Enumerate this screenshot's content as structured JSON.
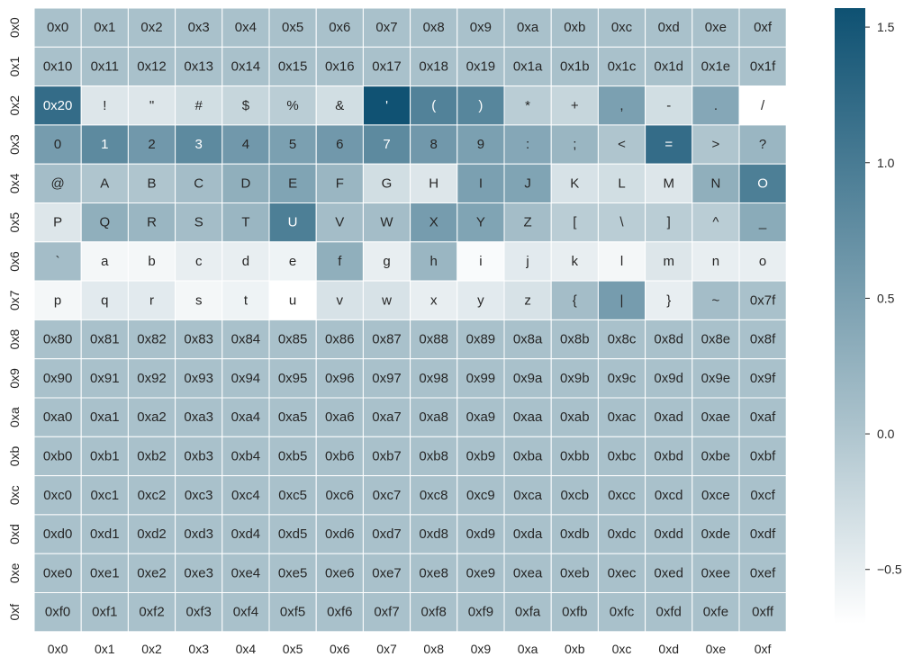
{
  "chart_data": {
    "type": "heatmap",
    "title": "",
    "xlabel": "",
    "ylabel": "",
    "x_categories": [
      "0x0",
      "0x1",
      "0x2",
      "0x3",
      "0x4",
      "0x5",
      "0x6",
      "0x7",
      "0x8",
      "0x9",
      "0xa",
      "0xb",
      "0xc",
      "0xd",
      "0xe",
      "0xf"
    ],
    "y_categories": [
      "0x0",
      "0x1",
      "0x2",
      "0x3",
      "0x4",
      "0x5",
      "0x6",
      "0x7",
      "0x8",
      "0x9",
      "0xa",
      "0xb",
      "0xc",
      "0xd",
      "0xe",
      "0xf"
    ],
    "annotations": [
      [
        "0x0",
        "0x1",
        "0x2",
        "0x3",
        "0x4",
        "0x5",
        "0x6",
        "0x7",
        "0x8",
        "0x9",
        "0xa",
        "0xb",
        "0xc",
        "0xd",
        "0xe",
        "0xf"
      ],
      [
        "0x10",
        "0x11",
        "0x12",
        "0x13",
        "0x14",
        "0x15",
        "0x16",
        "0x17",
        "0x18",
        "0x19",
        "0x1a",
        "0x1b",
        "0x1c",
        "0x1d",
        "0x1e",
        "0x1f"
      ],
      [
        "0x20",
        "!",
        "\"",
        "#",
        "$",
        "%",
        "&",
        "'",
        "(",
        ")",
        "*",
        "+",
        ",",
        "-",
        ".",
        "/"
      ],
      [
        "0",
        "1",
        "2",
        "3",
        "4",
        "5",
        "6",
        "7",
        "8",
        "9",
        ":",
        ";",
        "<",
        "=",
        ">",
        "?"
      ],
      [
        "@",
        "A",
        "B",
        "C",
        "D",
        "E",
        "F",
        "G",
        "H",
        "I",
        "J",
        "K",
        "L",
        "M",
        "N",
        "O"
      ],
      [
        "P",
        "Q",
        "R",
        "S",
        "T",
        "U",
        "V",
        "W",
        "X",
        "Y",
        "Z",
        "[",
        "\\",
        "]",
        "^",
        "_"
      ],
      [
        "`",
        "a",
        "b",
        "c",
        "d",
        "e",
        "f",
        "g",
        "h",
        "i",
        "j",
        "k",
        "l",
        "m",
        "n",
        "o"
      ],
      [
        "p",
        "q",
        "r",
        "s",
        "t",
        "u",
        "v",
        "w",
        "x",
        "y",
        "z",
        "{",
        "|",
        "}",
        "~",
        "0x7f"
      ],
      [
        "0x80",
        "0x81",
        "0x82",
        "0x83",
        "0x84",
        "0x85",
        "0x86",
        "0x87",
        "0x88",
        "0x89",
        "0x8a",
        "0x8b",
        "0x8c",
        "0x8d",
        "0x8e",
        "0x8f"
      ],
      [
        "0x90",
        "0x91",
        "0x92",
        "0x93",
        "0x94",
        "0x95",
        "0x96",
        "0x97",
        "0x98",
        "0x99",
        "0x9a",
        "0x9b",
        "0x9c",
        "0x9d",
        "0x9e",
        "0x9f"
      ],
      [
        "0xa0",
        "0xa1",
        "0xa2",
        "0xa3",
        "0xa4",
        "0xa5",
        "0xa6",
        "0xa7",
        "0xa8",
        "0xa9",
        "0xaa",
        "0xab",
        "0xac",
        "0xad",
        "0xae",
        "0xaf"
      ],
      [
        "0xb0",
        "0xb1",
        "0xb2",
        "0xb3",
        "0xb4",
        "0xb5",
        "0xb6",
        "0xb7",
        "0xb8",
        "0xb9",
        "0xba",
        "0xbb",
        "0xbc",
        "0xbd",
        "0xbe",
        "0xbf"
      ],
      [
        "0xc0",
        "0xc1",
        "0xc2",
        "0xc3",
        "0xc4",
        "0xc5",
        "0xc6",
        "0xc7",
        "0xc8",
        "0xc9",
        "0xca",
        "0xcb",
        "0xcc",
        "0xcd",
        "0xce",
        "0xcf"
      ],
      [
        "0xd0",
        "0xd1",
        "0xd2",
        "0xd3",
        "0xd4",
        "0xd5",
        "0xd6",
        "0xd7",
        "0xd8",
        "0xd9",
        "0xda",
        "0xdb",
        "0xdc",
        "0xdd",
        "0xde",
        "0xdf"
      ],
      [
        "0xe0",
        "0xe1",
        "0xe2",
        "0xe3",
        "0xe4",
        "0xe5",
        "0xe6",
        "0xe7",
        "0xe8",
        "0xe9",
        "0xea",
        "0xeb",
        "0xec",
        "0xed",
        "0xee",
        "0xef"
      ],
      [
        "0xf0",
        "0xf1",
        "0xf2",
        "0xf3",
        "0xf4",
        "0xf5",
        "0xf6",
        "0xf7",
        "0xf8",
        "0xf9",
        "0xfa",
        "0xfb",
        "0xfc",
        "0xfd",
        "0xfe",
        "0xff"
      ]
    ],
    "values": [
      [
        0.05,
        0.05,
        0.05,
        0.05,
        0.05,
        0.05,
        0.05,
        0.05,
        0.05,
        0.05,
        0.05,
        0.05,
        0.05,
        0.05,
        0.05,
        0.05
      ],
      [
        0.05,
        0.05,
        0.05,
        0.05,
        0.05,
        0.05,
        0.05,
        0.05,
        0.05,
        0.05,
        0.05,
        0.05,
        0.05,
        0.05,
        0.05,
        0.05
      ],
      [
        1.2,
        -0.4,
        -0.4,
        -0.3,
        -0.2,
        -0.1,
        -0.3,
        1.55,
        0.9,
        0.85,
        -0.1,
        -0.2,
        0.5,
        -0.3,
        0.4,
        -0.7
      ],
      [
        0.55,
        0.8,
        0.6,
        0.8,
        0.6,
        0.5,
        0.6,
        0.8,
        0.6,
        0.5,
        0.4,
        0.2,
        0.0,
        1.2,
        0.0,
        0.2
      ],
      [
        0.1,
        0.0,
        0.0,
        0.1,
        0.3,
        0.45,
        0.2,
        -0.3,
        -0.4,
        0.5,
        0.45,
        -0.35,
        -0.3,
        -0.4,
        0.3,
        0.95
      ],
      [
        -0.4,
        0.3,
        0.2,
        0.1,
        0.2,
        0.95,
        0.1,
        0.1,
        0.55,
        0.45,
        0.1,
        -0.1,
        -0.1,
        -0.1,
        -0.1,
        0.35
      ],
      [
        0.1,
        -0.6,
        -0.6,
        -0.5,
        -0.5,
        -0.55,
        0.3,
        -0.5,
        0.2,
        -0.65,
        -0.45,
        -0.5,
        -0.6,
        -0.4,
        -0.5,
        -0.5
      ],
      [
        -0.6,
        -0.45,
        -0.45,
        -0.6,
        -0.55,
        -0.7,
        -0.35,
        -0.35,
        -0.5,
        -0.45,
        -0.35,
        0.1,
        0.55,
        -0.5,
        0.1,
        0.05
      ],
      [
        0.05,
        0.05,
        0.05,
        0.05,
        0.05,
        0.05,
        0.05,
        0.05,
        0.05,
        0.05,
        0.05,
        0.05,
        0.05,
        0.05,
        0.05,
        0.05
      ],
      [
        0.05,
        0.05,
        0.05,
        0.05,
        0.05,
        0.05,
        0.05,
        0.05,
        0.05,
        0.05,
        0.05,
        0.05,
        0.05,
        0.05,
        0.05,
        0.05
      ],
      [
        0.05,
        0.05,
        0.05,
        0.05,
        0.05,
        0.05,
        0.05,
        0.05,
        0.05,
        0.05,
        0.05,
        0.05,
        0.05,
        0.05,
        0.05,
        0.05
      ],
      [
        0.05,
        0.05,
        0.05,
        0.05,
        0.05,
        0.05,
        0.05,
        0.05,
        0.05,
        0.05,
        0.05,
        0.05,
        0.05,
        0.05,
        0.05,
        0.05
      ],
      [
        0.05,
        0.05,
        0.05,
        0.05,
        0.05,
        0.05,
        0.05,
        0.05,
        0.05,
        0.05,
        0.05,
        0.05,
        0.05,
        0.05,
        0.05,
        0.05
      ],
      [
        0.05,
        0.05,
        0.05,
        0.05,
        0.05,
        0.05,
        0.05,
        0.05,
        0.05,
        0.05,
        0.05,
        0.05,
        0.05,
        0.05,
        0.05,
        0.05
      ],
      [
        0.05,
        0.05,
        0.05,
        0.05,
        0.05,
        0.05,
        0.05,
        0.05,
        0.05,
        0.05,
        0.05,
        0.05,
        0.05,
        0.05,
        0.05,
        0.05
      ],
      [
        0.05,
        0.05,
        0.05,
        0.05,
        0.05,
        0.05,
        0.05,
        0.05,
        0.05,
        0.05,
        0.05,
        0.05,
        0.05,
        0.05,
        0.05,
        0.05
      ]
    ],
    "vmin": -0.7,
    "vmax": 1.57,
    "colorbar": {
      "ticks": [
        1.5,
        1.0,
        0.5,
        0.0,
        -0.5
      ],
      "tick_labels": [
        "1.5",
        "1.0",
        "0.5",
        "0.0",
        "−0.5"
      ]
    },
    "colormap": {
      "low": "#ffffff",
      "mid": "#a9c1cb",
      "high": "#0e5172"
    },
    "grid": false,
    "legend": "colorbar-right"
  }
}
